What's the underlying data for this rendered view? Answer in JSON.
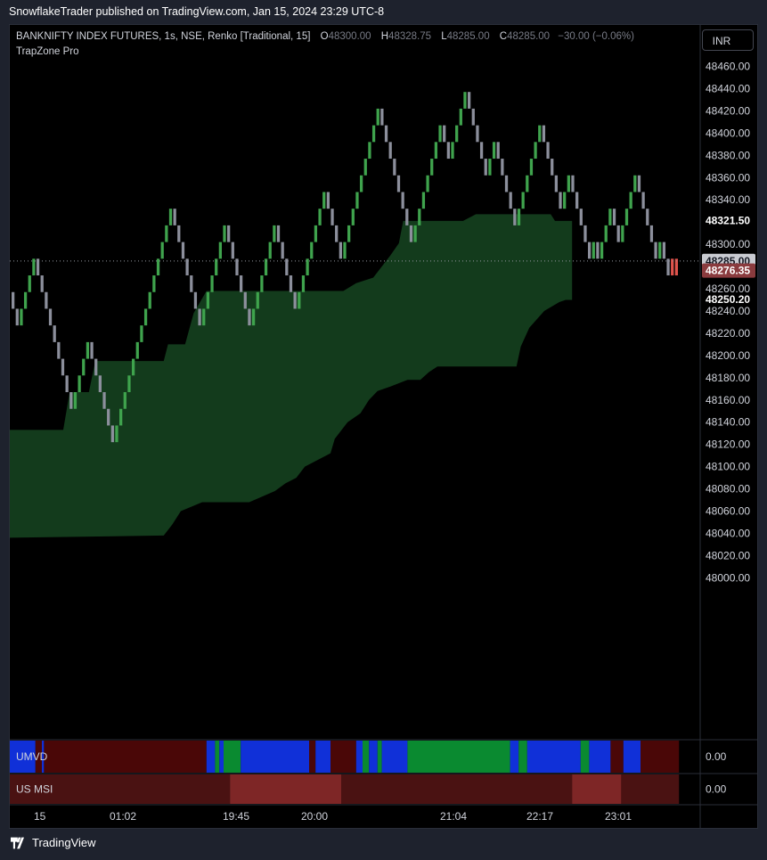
{
  "publisher_caption": "SnowflakeTrader published on TradingView.com, Jan 15, 2024 23:29 UTC-8",
  "symbol_line": {
    "symbol": "BANKNIFTY INDEX FUTURES, 1s, NSE, Renko [Traditional, 15]",
    "o_label": "O",
    "o_value": "48300.00",
    "h_label": "H",
    "h_value": "48328.75",
    "l_label": "L",
    "l_value": "48285.00",
    "c_label": "C",
    "c_value": "48285.00",
    "change": "−30.00 (−0.06%)"
  },
  "indicator_name": "TrapZone Pro",
  "currency_button": "INR",
  "footer_brand": "TradingView",
  "colors": {
    "background": "#000000",
    "panel": "#1e222d",
    "brick_up": "#3fa34d",
    "brick_down": "#8c8f9c",
    "brick_red": "#e0534c",
    "zone": "#133b1c",
    "umvd_red": "#4a0707",
    "umvd_blue": "#1030d8",
    "umvd_green": "#0a8a30",
    "msi_dark": "#4a1212",
    "msi_light": "#7e2626",
    "badge_gray": "#c9cbd1",
    "badge_red": "#8a3b3e"
  },
  "chart_data": {
    "type": "renko",
    "brick_size": 15,
    "ylim": [
      48000,
      48470
    ],
    "y_ticks": [
      "48460.00",
      "48440.00",
      "48420.00",
      "48400.00",
      "48380.00",
      "48360.00",
      "48340.00",
      "48320.00",
      "48300.00",
      "48280.00",
      "48260.00",
      "48240.00",
      "48220.00",
      "48200.00",
      "48180.00",
      "48160.00",
      "48140.00",
      "48120.00",
      "48100.00",
      "48080.00",
      "48060.00",
      "48040.00",
      "48020.00",
      "48000.00"
    ],
    "x_ticks": [
      "15",
      "01:02",
      "19:45",
      "20:00",
      "21:04",
      "22:17",
      "23:01"
    ],
    "price_labels": [
      {
        "label": "48321.50",
        "value": 48321.5,
        "style": "plain"
      },
      {
        "label": "48285.00",
        "value": 48285,
        "style": "gray"
      },
      {
        "label": "48276.35",
        "value": 48276.35,
        "style": "red"
      },
      {
        "label": "48250.20",
        "value": 48250.2,
        "style": "plain"
      }
    ],
    "last_price_line": 48285,
    "brick_path": [
      48257,
      48224,
      48257,
      48288,
      48224,
      48175,
      48145,
      48205,
      48175,
      48122,
      48182,
      48244,
      48330,
      48242,
      48225,
      48285,
      48315,
      48250,
      48225,
      48258,
      48315,
      48270,
      48240,
      48340,
      48285,
      48300,
      48415,
      48340,
      48300,
      48400,
      48378,
      48438,
      48362,
      48390,
      48340,
      48322,
      48325,
      48410,
      48330,
      48364,
      48318,
      48288,
      48305,
      48288,
      48325,
      48295,
      48362,
      48336,
      48292,
      48300,
      48275,
      48288,
      48267
    ]
  },
  "zone": {
    "upper": [
      [
        0,
        48133
      ],
      [
        25,
        48133
      ],
      [
        28,
        48167
      ],
      [
        37,
        48167
      ],
      [
        40,
        48195
      ],
      [
        72,
        48195
      ],
      [
        74,
        48210
      ],
      [
        82,
        48210
      ],
      [
        86,
        48238
      ],
      [
        92,
        48258
      ],
      [
        156,
        48258
      ],
      [
        162,
        48265
      ],
      [
        170,
        48270
      ],
      [
        178,
        48290
      ],
      [
        182,
        48301
      ],
      [
        184,
        48321
      ],
      [
        212,
        48321
      ],
      [
        218,
        48327
      ],
      [
        253,
        48327
      ],
      [
        255,
        48321
      ],
      [
        263,
        48321
      ],
      [
        263,
        48250
      ],
      [
        260,
        48250
      ],
      [
        257,
        48248
      ],
      [
        250,
        48240
      ],
      [
        243,
        48225
      ],
      [
        239,
        48208
      ],
      [
        237,
        48190
      ],
      [
        214,
        48190
      ],
      [
        200,
        48190
      ],
      [
        196,
        48185
      ],
      [
        192,
        48178
      ],
      [
        186,
        48178
      ],
      [
        178,
        48172
      ],
      [
        172,
        48168
      ],
      [
        168,
        48160
      ],
      [
        164,
        48148
      ],
      [
        158,
        48140
      ],
      [
        152,
        48125
      ],
      [
        150,
        48112
      ],
      [
        146,
        48108
      ],
      [
        138,
        48100
      ],
      [
        134,
        48090
      ],
      [
        129,
        48085
      ],
      [
        124,
        48078
      ],
      [
        112,
        48068
      ],
      [
        90,
        48068
      ],
      [
        80,
        48060
      ],
      [
        76,
        48048
      ],
      [
        72,
        48038
      ],
      [
        0,
        48036
      ]
    ]
  },
  "umvd": {
    "name": "UMVD",
    "value": "0.00",
    "segments": [
      [
        "blue",
        0,
        12
      ],
      [
        "red",
        12,
        15
      ],
      [
        "blue",
        15,
        16
      ],
      [
        "red",
        16,
        92
      ],
      [
        "blue",
        92,
        96
      ],
      [
        "green",
        96,
        98
      ],
      [
        "blue",
        98,
        100
      ],
      [
        "green",
        100,
        108
      ],
      [
        "blue",
        108,
        140
      ],
      [
        "red",
        140,
        143
      ],
      [
        "blue",
        143,
        150
      ],
      [
        "red",
        150,
        162
      ],
      [
        "blue",
        162,
        165
      ],
      [
        "green",
        165,
        168
      ],
      [
        "blue",
        168,
        172
      ],
      [
        "green",
        172,
        174
      ],
      [
        "blue",
        174,
        186
      ],
      [
        "green",
        186,
        234
      ],
      [
        "blue",
        234,
        238
      ],
      [
        "green",
        238,
        242
      ],
      [
        "blue",
        242,
        267
      ],
      [
        "green",
        267,
        271
      ],
      [
        "blue",
        271,
        281
      ],
      [
        "red",
        281,
        287
      ],
      [
        "blue",
        287,
        295
      ],
      [
        "red",
        295,
        313
      ]
    ]
  },
  "us_msi": {
    "name": "US MSI",
    "value": "0.00",
    "segments": [
      [
        "dark",
        0,
        103
      ],
      [
        "light",
        103,
        155
      ],
      [
        "dark",
        155,
        263
      ],
      [
        "light",
        263,
        286
      ],
      [
        "dark",
        286,
        313
      ]
    ]
  }
}
